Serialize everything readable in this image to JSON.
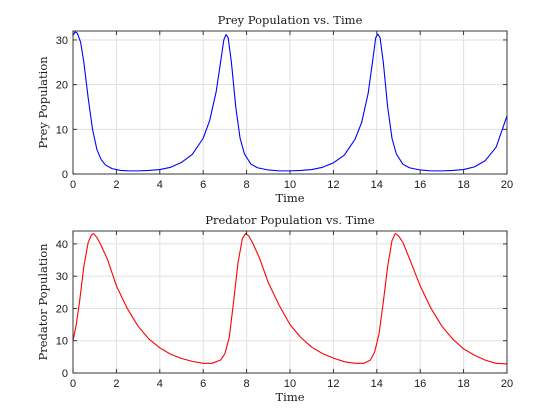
{
  "chart_data": [
    {
      "type": "line",
      "title": "Prey Population vs. Time",
      "xlabel": "Time",
      "ylabel": "Prey Population",
      "xlim": [
        0,
        20
      ],
      "ylim": [
        0,
        32
      ],
      "xticks": [
        0,
        2,
        4,
        6,
        8,
        10,
        12,
        14,
        16,
        18,
        20
      ],
      "yticks": [
        0,
        10,
        20,
        30
      ],
      "grid": true,
      "series": [
        {
          "color": "#0000ff",
          "x": [
            0,
            0.1,
            0.2,
            0.35,
            0.5,
            0.7,
            0.9,
            1.1,
            1.3,
            1.5,
            1.8,
            2.2,
            2.6,
            3.0,
            3.5,
            4.0,
            4.5,
            5.0,
            5.5,
            6.0,
            6.3,
            6.6,
            6.8,
            6.95,
            7.05,
            7.15,
            7.3,
            7.5,
            7.7,
            7.9,
            8.2,
            8.5,
            9.0,
            9.5,
            10.0,
            10.5,
            11.0,
            11.5,
            12.0,
            12.5,
            13.0,
            13.3,
            13.6,
            13.8,
            13.95,
            14.05,
            14.15,
            14.3,
            14.5,
            14.7,
            14.9,
            15.2,
            15.5,
            16.0,
            16.5,
            17.0,
            17.5,
            18.0,
            18.5,
            19.0,
            19.5,
            20.0
          ],
          "values": [
            31.0,
            31.8,
            31.5,
            29.5,
            25.0,
            17.0,
            10.0,
            5.5,
            3.2,
            2.0,
            1.2,
            0.8,
            0.7,
            0.7,
            0.8,
            1.0,
            1.5,
            2.6,
            4.4,
            8.0,
            12.0,
            18.5,
            25.0,
            30.0,
            31.2,
            30.5,
            25.0,
            15.0,
            8.0,
            4.5,
            2.2,
            1.4,
            0.9,
            0.7,
            0.7,
            0.8,
            1.0,
            1.5,
            2.5,
            4.2,
            7.8,
            11.5,
            18.0,
            25.0,
            30.5,
            31.3,
            30.5,
            25.0,
            15.0,
            8.0,
            4.5,
            2.2,
            1.4,
            0.9,
            0.7,
            0.7,
            0.8,
            1.0,
            1.6,
            3.0,
            6.0,
            13.0
          ]
        }
      ]
    },
    {
      "type": "line",
      "title": "Predator Population vs. Time",
      "xlabel": "Time",
      "ylabel": "Predator Population",
      "xlim": [
        0,
        20
      ],
      "ylim": [
        0,
        44
      ],
      "xticks": [
        0,
        2,
        4,
        6,
        8,
        10,
        12,
        14,
        16,
        18,
        20
      ],
      "yticks": [
        0,
        10,
        20,
        30,
        40
      ],
      "grid": true,
      "series": [
        {
          "color": "#ff0000",
          "x": [
            0,
            0.15,
            0.3,
            0.5,
            0.7,
            0.85,
            0.95,
            1.1,
            1.3,
            1.6,
            2.0,
            2.5,
            3.0,
            3.5,
            4.0,
            4.5,
            5.0,
            5.5,
            6.0,
            6.4,
            6.8,
            7.0,
            7.2,
            7.4,
            7.6,
            7.8,
            7.95,
            8.1,
            8.3,
            8.6,
            9.0,
            9.5,
            10.0,
            10.5,
            11.0,
            11.5,
            12.0,
            12.5,
            13.0,
            13.4,
            13.7,
            13.9,
            14.1,
            14.3,
            14.5,
            14.7,
            14.85,
            15.0,
            15.2,
            15.5,
            16.0,
            16.5,
            17.0,
            17.5,
            18.0,
            18.5,
            19.0,
            19.5,
            20.0
          ],
          "values": [
            10.0,
            15.0,
            22.0,
            33.0,
            40.5,
            42.8,
            43.2,
            42.0,
            39.5,
            35.0,
            27.0,
            20.0,
            14.5,
            10.5,
            7.8,
            5.8,
            4.5,
            3.6,
            3.0,
            3.0,
            4.0,
            6.0,
            11.0,
            22.0,
            34.0,
            41.5,
            43.2,
            42.5,
            40.0,
            35.5,
            28.0,
            21.0,
            15.0,
            11.0,
            8.0,
            6.0,
            4.6,
            3.5,
            3.0,
            3.0,
            4.0,
            6.5,
            12.0,
            22.0,
            33.0,
            41.0,
            43.2,
            42.5,
            40.5,
            35.5,
            27.0,
            20.0,
            14.5,
            10.5,
            7.5,
            5.5,
            4.0,
            3.0,
            2.8
          ]
        }
      ]
    }
  ]
}
